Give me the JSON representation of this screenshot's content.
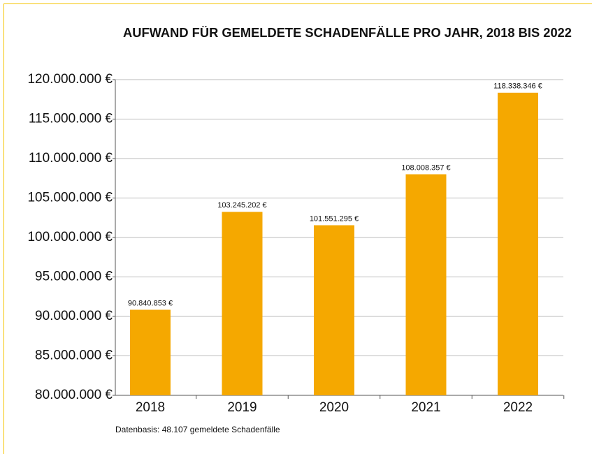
{
  "chart_data": {
    "type": "bar",
    "title": "AUFWAND FÜR GEMELDETE SCHADENFÄLLE PRO JAHR, 2018 BIS 2022",
    "categories": [
      "2018",
      "2019",
      "2020",
      "2021",
      "2022"
    ],
    "values": [
      90840853,
      103245202,
      101551295,
      108008357,
      118338346
    ],
    "value_labels": [
      "90.840.853 €",
      "103.245.202 €",
      "101.551.295 €",
      "108.008.357 €",
      "118.338.346 €"
    ],
    "color": "#f5a800",
    "ylim": [
      80000000,
      120000000
    ],
    "yticks": [
      {
        "value": 80000000,
        "label": "80.000.000 €"
      },
      {
        "value": 85000000,
        "label": "85.000.000 €"
      },
      {
        "value": 90000000,
        "label": "90.000.000 €"
      },
      {
        "value": 95000000,
        "label": "95.000.000 €"
      },
      {
        "value": 100000000,
        "label": "100.000.000 €"
      },
      {
        "value": 105000000,
        "label": "105.000.000 €"
      },
      {
        "value": 110000000,
        "label": "110.000.000 €"
      },
      {
        "value": 115000000,
        "label": "115.000.000 €"
      },
      {
        "value": 120000000,
        "label": "120.000.000 €"
      }
    ],
    "grid": true,
    "note": "Datenbasis: 48.107 gemeldete Schadenfälle"
  }
}
